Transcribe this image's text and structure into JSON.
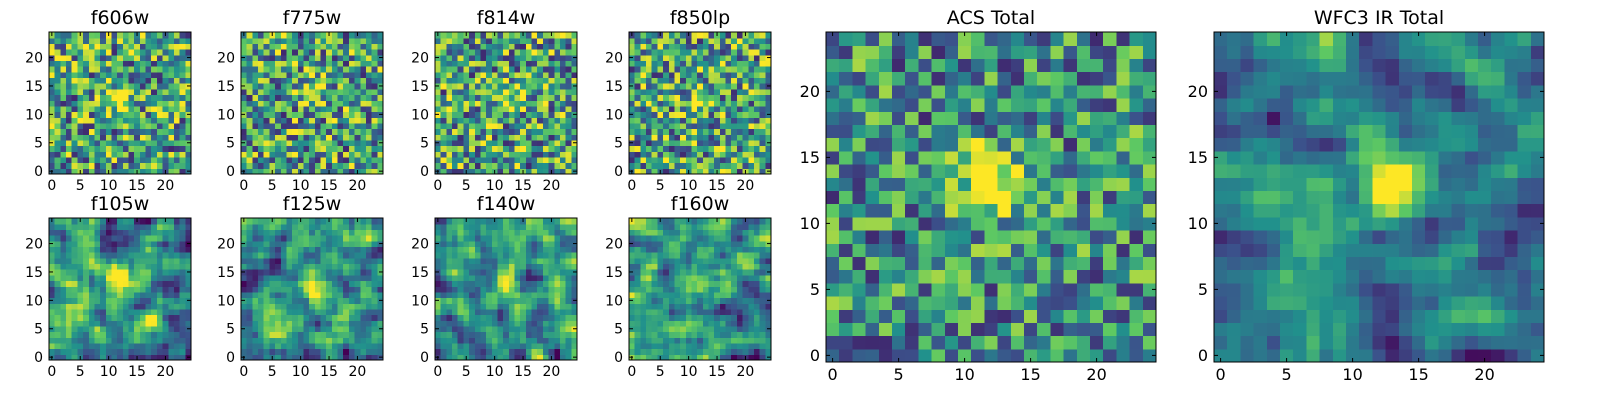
{
  "chart_data": [
    {
      "id": "f606w",
      "type": "heatmap",
      "title": "f606w",
      "size": 25,
      "xticks": [
        0,
        5,
        10,
        15,
        20
      ],
      "yticks": [
        0,
        5,
        10,
        15,
        20
      ],
      "seed": 11,
      "blur": 0,
      "noise": 0.9,
      "hotspot": {
        "x": 12,
        "y": 13,
        "strength": 0.45
      }
    },
    {
      "id": "f775w",
      "type": "heatmap",
      "title": "f775w",
      "size": 25,
      "xticks": [
        0,
        5,
        10,
        15,
        20
      ],
      "yticks": [
        0,
        5,
        10,
        15,
        20
      ],
      "seed": 23,
      "blur": 0,
      "noise": 0.9,
      "hotspot": {
        "x": 12,
        "y": 14,
        "strength": 0.35
      }
    },
    {
      "id": "f814w",
      "type": "heatmap",
      "title": "f814w",
      "size": 25,
      "xticks": [
        0,
        5,
        10,
        15,
        20
      ],
      "yticks": [
        0,
        5,
        10,
        15,
        20
      ],
      "seed": 37,
      "blur": 0,
      "noise": 0.9,
      "hotspot": {
        "x": 13,
        "y": 13,
        "strength": 0.35
      }
    },
    {
      "id": "f850lp",
      "type": "heatmap",
      "title": "f850lp",
      "size": 25,
      "xticks": [
        0,
        5,
        10,
        15,
        20
      ],
      "yticks": [
        0,
        5,
        10,
        15,
        20
      ],
      "seed": 41,
      "blur": 0,
      "noise": 0.9,
      "hotspot": {
        "x": 12,
        "y": 13,
        "strength": 0.3
      }
    },
    {
      "id": "f105w",
      "type": "heatmap",
      "title": "f105w",
      "size": 25,
      "xticks": [
        0,
        5,
        10,
        15,
        20
      ],
      "yticks": [
        0,
        5,
        10,
        15,
        20
      ],
      "seed": 53,
      "blur": 1,
      "noise": 0.8,
      "hotspot": {
        "x": 12,
        "y": 13,
        "strength": 0.5
      }
    },
    {
      "id": "f125w",
      "type": "heatmap",
      "title": "f125w",
      "size": 25,
      "xticks": [
        0,
        5,
        10,
        15,
        20
      ],
      "yticks": [
        0,
        5,
        10,
        15,
        20
      ],
      "seed": 67,
      "blur": 1,
      "noise": 0.8,
      "hotspot": {
        "x": 12,
        "y": 13,
        "strength": 0.4
      }
    },
    {
      "id": "f140w",
      "type": "heatmap",
      "title": "f140w",
      "size": 25,
      "xticks": [
        0,
        5,
        10,
        15,
        20
      ],
      "yticks": [
        0,
        5,
        10,
        15,
        20
      ],
      "seed": 79,
      "blur": 1,
      "noise": 0.8,
      "hotspot": {
        "x": 12,
        "y": 13,
        "strength": 0.45
      }
    },
    {
      "id": "f160w",
      "type": "heatmap",
      "title": "f160w",
      "size": 25,
      "xticks": [
        0,
        5,
        10,
        15,
        20
      ],
      "yticks": [
        0,
        5,
        10,
        15,
        20
      ],
      "seed": 83,
      "blur": 1,
      "noise": 0.8,
      "hotspot": {
        "x": 13,
        "y": 12,
        "strength": 0.6
      }
    },
    {
      "id": "acs_total",
      "type": "heatmap",
      "title": "ACS Total",
      "size": 25,
      "xticks": [
        0,
        5,
        10,
        15,
        20
      ],
      "yticks": [
        0,
        5,
        10,
        15,
        20
      ],
      "seed": 97,
      "blur": 0,
      "noise": 0.75,
      "hotspot": {
        "x": 12,
        "y": 13,
        "strength": 0.7
      }
    },
    {
      "id": "wfc3_ir_total",
      "type": "heatmap",
      "title": "WFC3 IR Total",
      "size": 25,
      "xticks": [
        0,
        5,
        10,
        15,
        20
      ],
      "yticks": [
        0,
        5,
        10,
        15,
        20
      ],
      "seed": 101,
      "blur": 1,
      "noise": 0.6,
      "hotspot": {
        "x": 13,
        "y": 13,
        "strength": 0.9
      }
    }
  ],
  "colors": {
    "colormap": "viridis",
    "viridis_stops": [
      "#440154",
      "#3b528b",
      "#21918c",
      "#5ec962",
      "#fde725"
    ]
  }
}
